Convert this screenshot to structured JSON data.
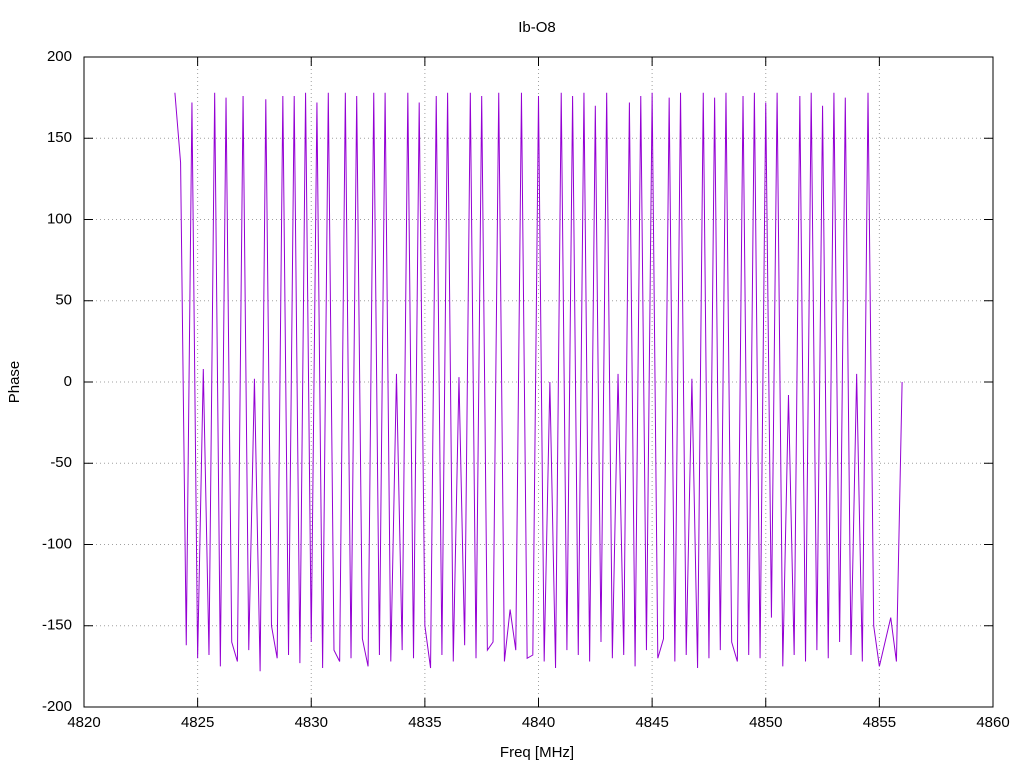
{
  "chart_data": {
    "type": "line",
    "title": "Ib-O8",
    "xlabel": "Freq [MHz]",
    "ylabel": "Phase",
    "xlim": [
      4820,
      4860
    ],
    "xticks": [
      4820,
      4825,
      4830,
      4835,
      4840,
      4845,
      4850,
      4855,
      4860
    ],
    "ylim": [
      -200,
      200
    ],
    "yticks": [
      -200,
      -150,
      -100,
      -50,
      0,
      50,
      100,
      150,
      200
    ],
    "grid": true,
    "series": [
      {
        "color": "#9400d3",
        "x": [
          4824,
          4824.25,
          4824.5,
          4824.75,
          4825,
          4825.25,
          4825.5,
          4825.75,
          4826,
          4826.25,
          4826.5,
          4826.75,
          4827,
          4827.25,
          4827.5,
          4827.75,
          4828,
          4828.25,
          4828.5,
          4828.75,
          4829,
          4829.25,
          4829.5,
          4829.75,
          4830,
          4830.25,
          4830.5,
          4830.75,
          4831,
          4831.25,
          4831.5,
          4831.75,
          4832,
          4832.25,
          4832.5,
          4832.75,
          4833,
          4833.25,
          4833.5,
          4833.75,
          4834,
          4834.25,
          4834.5,
          4834.75,
          4835,
          4835.25,
          4835.5,
          4835.75,
          4836,
          4836.25,
          4836.5,
          4836.75,
          4837,
          4837.25,
          4837.5,
          4837.75,
          4838,
          4838.25,
          4838.5,
          4838.75,
          4839,
          4839.25,
          4839.5,
          4839.75,
          4840,
          4840.25,
          4840.5,
          4840.75,
          4841,
          4841.25,
          4841.5,
          4841.75,
          4842,
          4842.25,
          4842.5,
          4842.75,
          4843,
          4843.25,
          4843.5,
          4843.75,
          4844,
          4844.25,
          4844.5,
          4844.75,
          4845,
          4845.25,
          4845.5,
          4845.75,
          4846,
          4846.25,
          4846.5,
          4846.75,
          4847,
          4847.25,
          4847.5,
          4847.75,
          4848,
          4848.25,
          4848.5,
          4848.75,
          4849,
          4849.25,
          4849.5,
          4849.75,
          4850,
          4850.25,
          4850.5,
          4850.75,
          4851,
          4851.25,
          4851.5,
          4851.75,
          4852,
          4852.25,
          4852.5,
          4852.75,
          4853,
          4853.25,
          4853.5,
          4853.75,
          4854,
          4854.25,
          4854.5,
          4854.75,
          4855,
          4855.25,
          4855.5,
          4855.75,
          4856
        ],
        "values": [
          178,
          135,
          -162,
          172,
          -170,
          8,
          -168,
          178,
          -175,
          175,
          -160,
          -172,
          176,
          -165,
          2,
          -178,
          174,
          -150,
          -170,
          176,
          -168,
          176,
          -173,
          178,
          -160,
          172,
          -176,
          178,
          -165,
          -172,
          178,
          -170,
          176,
          -158,
          -175,
          178,
          -168,
          178,
          -172,
          5,
          -165,
          178,
          -170,
          172,
          -150,
          -176,
          176,
          -168,
          178,
          -172,
          3,
          -162,
          178,
          -170,
          176,
          -165,
          -160,
          178,
          -172,
          -140,
          -165,
          178,
          -170,
          -168,
          176,
          -172,
          0,
          -176,
          178,
          -165,
          176,
          -168,
          178,
          -172,
          170,
          -160,
          178,
          -170,
          5,
          -168,
          172,
          -175,
          176,
          -165,
          178,
          -170,
          -158,
          175,
          -172,
          178,
          -168,
          2,
          -176,
          178,
          -170,
          175,
          -165,
          178,
          -160,
          -172,
          176,
          -168,
          178,
          -170,
          172,
          -145,
          178,
          -175,
          -8,
          -168,
          176,
          -172,
          178,
          -165,
          170,
          -170,
          178,
          -160,
          175,
          -168,
          5,
          -172,
          178,
          -150,
          -175,
          -160,
          -145,
          -172,
          0
        ]
      }
    ]
  }
}
